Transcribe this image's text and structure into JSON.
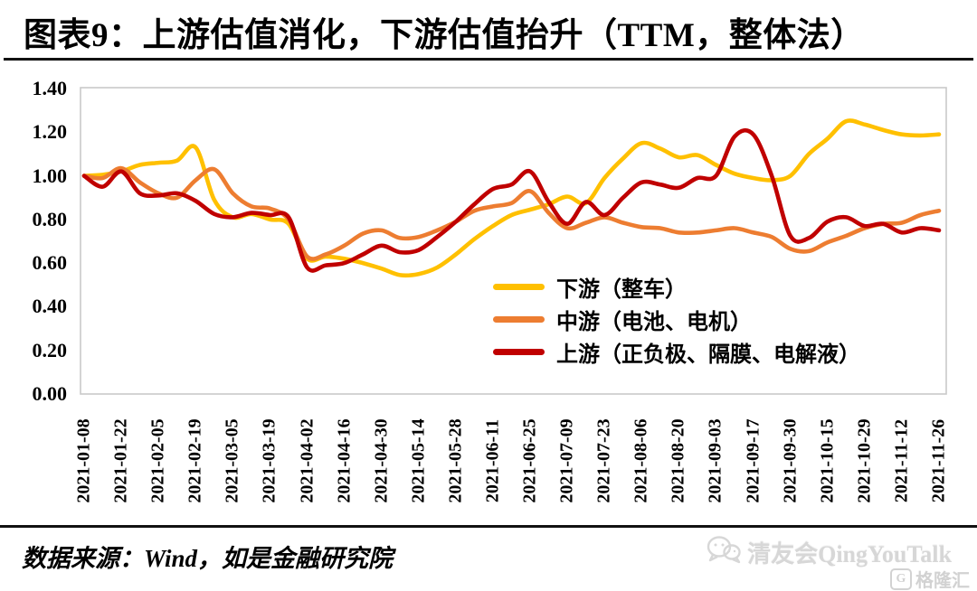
{
  "title": "图表9：上游估值消化，下游估值抬升（TTM，整体法）",
  "source_note": "数据来源：Wind，如是金融研究院",
  "watermark": {
    "name": "清友会QingYouTalk",
    "logo_text": "格隆汇",
    "logo_letter": "G"
  },
  "chart_data": {
    "type": "line",
    "title": "图表9：上游估值消化，下游估值抬升（TTM，整体法）",
    "grid": false,
    "plot_border_color": "#c9c9c9",
    "legend_position": "inside-center-right",
    "ylim": [
      0.0,
      1.4
    ],
    "y_tick_labels": [
      "1.40",
      "1.20",
      "1.00",
      "0.80",
      "0.60",
      "0.40",
      "0.20",
      "0.00"
    ],
    "x_tick_labels": [
      "2021-01-08",
      "2021-01-22",
      "2021-02-05",
      "2021-02-19",
      "2021-03-05",
      "2021-03-19",
      "2021-04-02",
      "2021-04-16",
      "2021-04-30",
      "2021-05-14",
      "2021-05-28",
      "2021-06-11",
      "2021-06-25",
      "2021-07-09",
      "2021-07-23",
      "2021-08-06",
      "2021-08-20",
      "2021-09-03",
      "2021-09-17",
      "2021-09-30",
      "2021-10-15",
      "2021-10-29",
      "2021-11-12",
      "2021-11-26"
    ],
    "points_per_labeled_tick": 2,
    "series": [
      {
        "name": "下游（整车）",
        "color": "#FFC000",
        "values": [
          1.0,
          1.005,
          1.02,
          1.05,
          1.06,
          1.07,
          1.13,
          0.89,
          0.81,
          0.825,
          0.8,
          0.78,
          0.62,
          0.63,
          0.62,
          0.6,
          0.575,
          0.545,
          0.55,
          0.58,
          0.64,
          0.71,
          0.77,
          0.82,
          0.845,
          0.87,
          0.905,
          0.875,
          0.99,
          1.08,
          1.15,
          1.125,
          1.085,
          1.095,
          1.05,
          1.01,
          0.99,
          0.98,
          1.0,
          1.1,
          1.17,
          1.25,
          1.235,
          1.21,
          1.19,
          1.185,
          1.19
        ]
      },
      {
        "name": "中游（电池、电机）",
        "color": "#ED7D31",
        "values": [
          1.0,
          0.99,
          1.035,
          0.97,
          0.92,
          0.9,
          0.98,
          1.03,
          0.92,
          0.86,
          0.85,
          0.8,
          0.63,
          0.64,
          0.68,
          0.735,
          0.75,
          0.715,
          0.72,
          0.75,
          0.79,
          0.84,
          0.86,
          0.875,
          0.93,
          0.83,
          0.76,
          0.785,
          0.81,
          0.785,
          0.765,
          0.76,
          0.74,
          0.74,
          0.75,
          0.76,
          0.74,
          0.72,
          0.665,
          0.655,
          0.695,
          0.725,
          0.76,
          0.78,
          0.785,
          0.82,
          0.84
        ]
      },
      {
        "name": "上游（正负极、隔膜、电解液）",
        "color": "#C00000",
        "values": [
          1.0,
          0.95,
          1.02,
          0.92,
          0.91,
          0.92,
          0.885,
          0.825,
          0.81,
          0.83,
          0.82,
          0.81,
          0.58,
          0.59,
          0.6,
          0.64,
          0.68,
          0.65,
          0.66,
          0.72,
          0.79,
          0.87,
          0.94,
          0.96,
          1.02,
          0.88,
          0.78,
          0.88,
          0.82,
          0.9,
          0.97,
          0.96,
          0.945,
          0.99,
          1.0,
          1.18,
          1.19,
          1.0,
          0.725,
          0.715,
          0.79,
          0.81,
          0.77,
          0.78,
          0.74,
          0.76,
          0.75
        ]
      }
    ]
  }
}
